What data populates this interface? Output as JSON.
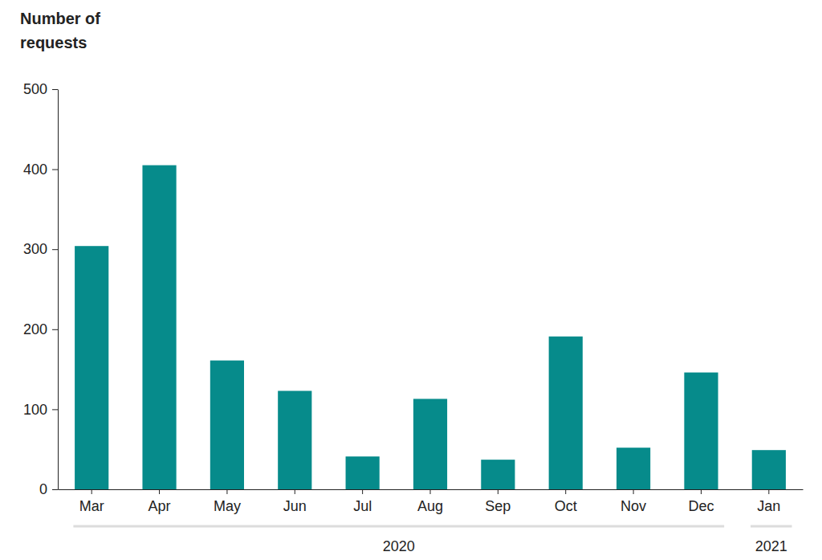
{
  "chart_data": {
    "type": "bar",
    "ylabel": [
      "Number of",
      "requests"
    ],
    "categories": [
      "Mar",
      "Apr",
      "May",
      "Jun",
      "Jul",
      "Aug",
      "Sep",
      "Oct",
      "Nov",
      "Dec",
      "Jan"
    ],
    "years": [
      "2020",
      "2020",
      "2020",
      "2020",
      "2020",
      "2020",
      "2020",
      "2020",
      "2020",
      "2020",
      "2021"
    ],
    "values": [
      304,
      405,
      161,
      123,
      41,
      113,
      37,
      191,
      52,
      146,
      49
    ],
    "color": "#068b8b",
    "ylim": [
      0,
      500
    ],
    "yticks": [
      0,
      100,
      200,
      300,
      400,
      500
    ],
    "grid": false
  }
}
